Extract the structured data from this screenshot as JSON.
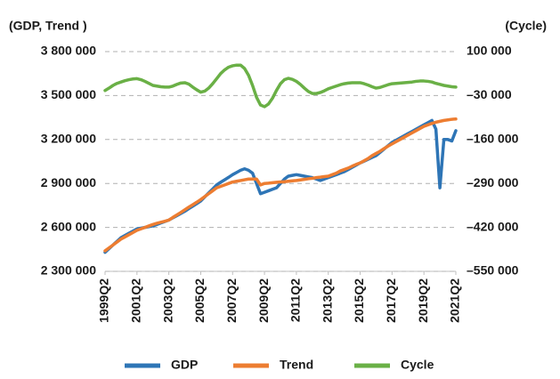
{
  "chart_data": {
    "type": "line",
    "y_label": "(GDP, Trend )",
    "y2_label": "(Cycle)",
    "categories": [
      "1999Q2",
      null,
      null,
      null,
      null,
      null,
      null,
      null,
      "2001Q2",
      null,
      null,
      null,
      null,
      null,
      null,
      null,
      "2003Q2",
      null,
      null,
      null,
      null,
      null,
      null,
      null,
      "2005Q2",
      null,
      null,
      null,
      null,
      null,
      null,
      null,
      "2007Q2",
      null,
      null,
      null,
      null,
      null,
      null,
      null,
      "2009Q2",
      null,
      null,
      null,
      null,
      null,
      null,
      null,
      "2011Q2",
      null,
      null,
      null,
      null,
      null,
      null,
      null,
      "2013Q2",
      null,
      null,
      null,
      null,
      null,
      null,
      null,
      "2015Q2",
      null,
      null,
      null,
      null,
      null,
      null,
      null,
      "2017Q2",
      null,
      null,
      null,
      null,
      null,
      null,
      null,
      "2019Q2",
      null,
      null,
      null,
      null,
      null,
      null,
      null,
      "2021Q2"
    ],
    "series": [
      {
        "name": "GDP",
        "color": "#2e75b6",
        "values": [
          2430000,
          2455000,
          2480000,
          2505000,
          2530000,
          2545000,
          2560000,
          2575000,
          2590000,
          2595000,
          2600000,
          2605000,
          2610000,
          2620000,
          2630000,
          2640000,
          2650000,
          2665000,
          2680000,
          2695000,
          2710000,
          2728000,
          2745000,
          2762000,
          2780000,
          2808000,
          2835000,
          2862000,
          2890000,
          2908000,
          2925000,
          2942000,
          2960000,
          2975000,
          2990000,
          3000000,
          2990000,
          2970000,
          2900000,
          2830000,
          2840000,
          2850000,
          2860000,
          2870000,
          2900000,
          2930000,
          2950000,
          2955000,
          2960000,
          2955000,
          2950000,
          2945000,
          2940000,
          2930000,
          2920000,
          2930000,
          2940000,
          2950000,
          2960000,
          2970000,
          2980000,
          2995000,
          3010000,
          3025000,
          3040000,
          3052000,
          3065000,
          3078000,
          3090000,
          3112000,
          3135000,
          3158000,
          3180000,
          3195000,
          3210000,
          3225000,
          3240000,
          3255000,
          3270000,
          3285000,
          3300000,
          3315000,
          3330000,
          3270000,
          2870000,
          3200000,
          3200000,
          3190000,
          3260000
        ]
      },
      {
        "name": "Trend",
        "color": "#ed7d31",
        "values": [
          2440000,
          2460000,
          2480000,
          2500000,
          2520000,
          2535000,
          2550000,
          2565000,
          2580000,
          2590000,
          2600000,
          2610000,
          2620000,
          2628000,
          2635000,
          2642000,
          2650000,
          2668000,
          2685000,
          2702000,
          2720000,
          2738000,
          2755000,
          2772000,
          2790000,
          2810000,
          2830000,
          2850000,
          2870000,
          2880000,
          2890000,
          2900000,
          2910000,
          2915000,
          2920000,
          2925000,
          2930000,
          2930000,
          2930000,
          2890000,
          2900000,
          2902000,
          2905000,
          2908000,
          2910000,
          2912000,
          2915000,
          2918000,
          2920000,
          2924000,
          2928000,
          2932000,
          2935000,
          2940000,
          2943000,
          2947000,
          2950000,
          2960000,
          2970000,
          2985000,
          2995000,
          3005000,
          3018000,
          3030000,
          3040000,
          3055000,
          3070000,
          3090000,
          3105000,
          3120000,
          3138000,
          3155000,
          3170000,
          3185000,
          3200000,
          3215000,
          3230000,
          3245000,
          3260000,
          3275000,
          3290000,
          3300000,
          3310000,
          3318000,
          3324000,
          3330000,
          3334000,
          3338000,
          3340000
        ]
      },
      {
        "name": "Cycle",
        "color": "#6ab046",
        "axis": "y2",
        "values": [
          -15000,
          -8000,
          0,
          6000,
          10000,
          14000,
          17000,
          19000,
          20000,
          17000,
          12000,
          6000,
          0,
          -2000,
          -4000,
          -5000,
          -5000,
          -2000,
          3000,
          7000,
          8000,
          4000,
          -5000,
          -13000,
          -20000,
          -17000,
          -8000,
          5000,
          20000,
          35000,
          46000,
          54000,
          58000,
          60000,
          60000,
          50000,
          30000,
          0,
          -35000,
          -58000,
          -63000,
          -55000,
          -38000,
          -15000,
          5000,
          17000,
          21000,
          18000,
          12000,
          3000,
          -8000,
          -18000,
          -24000,
          -24000,
          -21000,
          -16000,
          -10000,
          -6000,
          -2000,
          2000,
          5000,
          7000,
          8000,
          8000,
          8000,
          5000,
          1000,
          -4000,
          -8000,
          -6000,
          -2000,
          2000,
          5000,
          6000,
          7000,
          8000,
          9000,
          10000,
          12000,
          13000,
          13000,
          12000,
          10000,
          6000,
          3000,
          0,
          -2000,
          -4000,
          -5000
        ]
      }
    ],
    "ylim": [
      2300000,
      3800000
    ],
    "yticks": [
      {
        "value": 2300000,
        "label": "2 300 000"
      },
      {
        "value": 2600000,
        "label": "2 600 000"
      },
      {
        "value": 2900000,
        "label": "2 900 000"
      },
      {
        "value": 3200000,
        "label": "3 200 000"
      },
      {
        "value": 3500000,
        "label": "3 500 000"
      },
      {
        "value": 3800000,
        "label": "3 800 000"
      }
    ],
    "y2lim": [
      -550000,
      100000
    ],
    "y2ticks": [
      {
        "value": -550000,
        "label": "–550 000"
      },
      {
        "value": -420000,
        "label": "–420 000"
      },
      {
        "value": -290000,
        "label": "–290 000"
      },
      {
        "value": -160000,
        "label": "–160 000"
      },
      {
        "value": -30000,
        "label": "–30 000"
      },
      {
        "value": 100000,
        "label": "100 000"
      }
    ],
    "grid": true,
    "legend": "bottom"
  }
}
